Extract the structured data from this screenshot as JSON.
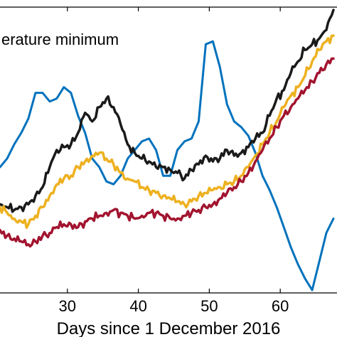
{
  "chart_data": {
    "type": "line",
    "title": "",
    "xlabel": "Days since 1 December 2016",
    "ylabel": "",
    "annotation": "erature minimum",
    "grid": false,
    "legend": "none",
    "xlim": [
      20.5,
      68
    ],
    "ylim": [
      0,
      1
    ],
    "x_ticks": [
      30,
      40,
      50,
      60
    ],
    "x_tick_labels": [
      "30",
      "40",
      "50",
      "60"
    ],
    "series": [
      {
        "color": "#0072BD",
        "x": [
          20.5,
          21.5,
          22.5,
          23.5,
          24.5,
          25.5,
          26.5,
          27.5,
          28.5,
          29.5,
          30.5,
          31.5,
          32.5,
          33.5,
          34.5,
          35.5,
          36.5,
          37.5,
          38.5,
          39.5,
          40.5,
          41.5,
          42.5,
          43.5,
          44.5,
          45.5,
          46.5,
          47.5,
          48.5,
          49.5,
          50.5,
          51.5,
          52.5,
          53.5,
          54.5,
          55.5,
          56.5,
          57.5,
          58.5,
          59.5,
          60.5,
          61.5,
          62.5,
          63.5,
          64.5,
          65.5,
          66.5,
          67.5
        ],
        "y": [
          0.44,
          0.47,
          0.52,
          0.56,
          0.61,
          0.7,
          0.7,
          0.67,
          0.68,
          0.72,
          0.7,
          0.62,
          0.56,
          0.47,
          0.44,
          0.39,
          0.38,
          0.41,
          0.47,
          0.5,
          0.53,
          0.54,
          0.5,
          0.41,
          0.41,
          0.5,
          0.53,
          0.54,
          0.6,
          0.87,
          0.88,
          0.79,
          0.66,
          0.6,
          0.58,
          0.55,
          0.49,
          0.41,
          0.36,
          0.3,
          0.23,
          0.16,
          0.1,
          0.05,
          0.01,
          0.11,
          0.21,
          0.26
        ]
      },
      {
        "color": "#1a1a1a",
        "x": [
          20.5,
          21.5,
          22.5,
          23.5,
          24.5,
          25.5,
          26.5,
          27.5,
          28.5,
          29.5,
          30.5,
          31.5,
          32.5,
          33.5,
          34.5,
          35.5,
          36.5,
          37.5,
          38.5,
          39.5,
          40.5,
          41.5,
          42.5,
          43.5,
          44.5,
          45.5,
          46.5,
          47.5,
          48.5,
          49.5,
          50.5,
          51.5,
          52.5,
          53.5,
          54.5,
          55.5,
          56.5,
          57.5,
          58.5,
          59.5,
          60.5,
          61.5,
          62.5,
          63.5,
          64.5,
          65.5,
          66.5,
          67.5
        ],
        "y": [
          0.31,
          0.3,
          0.29,
          0.3,
          0.31,
          0.34,
          0.37,
          0.44,
          0.5,
          0.51,
          0.52,
          0.56,
          0.63,
          0.6,
          0.65,
          0.68,
          0.65,
          0.59,
          0.52,
          0.49,
          0.47,
          0.46,
          0.44,
          0.44,
          0.43,
          0.42,
          0.4,
          0.43,
          0.45,
          0.48,
          0.46,
          0.47,
          0.5,
          0.48,
          0.49,
          0.51,
          0.54,
          0.56,
          0.62,
          0.68,
          0.71,
          0.77,
          0.81,
          0.85,
          0.87,
          0.89,
          0.92,
          0.99
        ]
      },
      {
        "color": "#EDB120",
        "x": [
          20.5,
          21.5,
          22.5,
          23.5,
          24.5,
          25.5,
          26.5,
          27.5,
          28.5,
          29.5,
          30.5,
          31.5,
          32.5,
          33.5,
          34.5,
          35.5,
          36.5,
          37.5,
          38.5,
          39.5,
          40.5,
          41.5,
          42.5,
          43.5,
          44.5,
          45.5,
          46.5,
          47.5,
          48.5,
          49.5,
          50.5,
          51.5,
          52.5,
          53.5,
          54.5,
          55.5,
          56.5,
          57.5,
          58.5,
          59.5,
          60.5,
          61.5,
          62.5,
          63.5,
          64.5,
          65.5,
          66.5,
          67.5
        ],
        "y": [
          0.3,
          0.28,
          0.26,
          0.25,
          0.24,
          0.27,
          0.3,
          0.34,
          0.38,
          0.4,
          0.41,
          0.44,
          0.46,
          0.48,
          0.49,
          0.47,
          0.45,
          0.42,
          0.4,
          0.39,
          0.37,
          0.36,
          0.35,
          0.34,
          0.33,
          0.32,
          0.31,
          0.32,
          0.34,
          0.35,
          0.36,
          0.37,
          0.38,
          0.39,
          0.41,
          0.44,
          0.48,
          0.52,
          0.56,
          0.6,
          0.65,
          0.69,
          0.72,
          0.76,
          0.81,
          0.85,
          0.88,
          0.9
        ]
      },
      {
        "color": "#A2142F",
        "x": [
          20.5,
          21.5,
          22.5,
          23.5,
          24.5,
          25.5,
          26.5,
          27.5,
          28.5,
          29.5,
          30.5,
          31.5,
          32.5,
          33.5,
          34.5,
          35.5,
          36.5,
          37.5,
          38.5,
          39.5,
          40.5,
          41.5,
          42.5,
          43.5,
          44.5,
          45.5,
          46.5,
          47.5,
          48.5,
          49.5,
          50.5,
          51.5,
          52.5,
          53.5,
          54.5,
          55.5,
          56.5,
          57.5,
          58.5,
          59.5,
          60.5,
          61.5,
          62.5,
          63.5,
          64.5,
          65.5,
          66.5,
          67.5
        ],
        "y": [
          0.22,
          0.2,
          0.19,
          0.18,
          0.17,
          0.18,
          0.2,
          0.21,
          0.23,
          0.24,
          0.24,
          0.23,
          0.25,
          0.26,
          0.27,
          0.28,
          0.29,
          0.28,
          0.27,
          0.26,
          0.27,
          0.28,
          0.28,
          0.27,
          0.26,
          0.26,
          0.27,
          0.28,
          0.29,
          0.3,
          0.31,
          0.33,
          0.35,
          0.37,
          0.39,
          0.42,
          0.46,
          0.5,
          0.54,
          0.58,
          0.62,
          0.65,
          0.68,
          0.71,
          0.74,
          0.77,
          0.8,
          0.82
        ]
      }
    ]
  }
}
